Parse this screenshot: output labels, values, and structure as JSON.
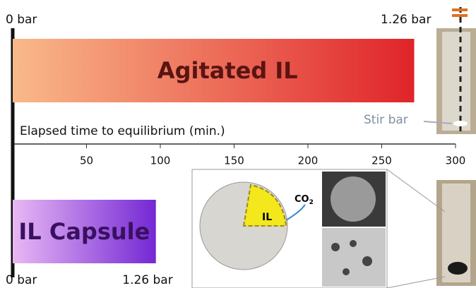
{
  "chart_data": {
    "type": "bar",
    "orientation": "horizontal",
    "xlabel": "Elapsed time to equilibrium (min.)",
    "categories": [
      "Agitated IL",
      "IL Capsule"
    ],
    "values": [
      272,
      97
    ],
    "colors": [
      [
        "#f9b98a",
        "#e0242a"
      ],
      [
        "#e8b8f4",
        "#7428d4"
      ]
    ],
    "xlim": [
      0,
      300
    ],
    "xticks": [
      50,
      100,
      150,
      200,
      250,
      300
    ],
    "start_labels": [
      "0 bar",
      "0 bar"
    ],
    "end_labels": [
      "1.26 bar",
      "1.26 bar"
    ],
    "annotations": {
      "stir_bar": "Stir bar",
      "il": "IL",
      "co2": "CO",
      "co2_sub": "2"
    }
  }
}
